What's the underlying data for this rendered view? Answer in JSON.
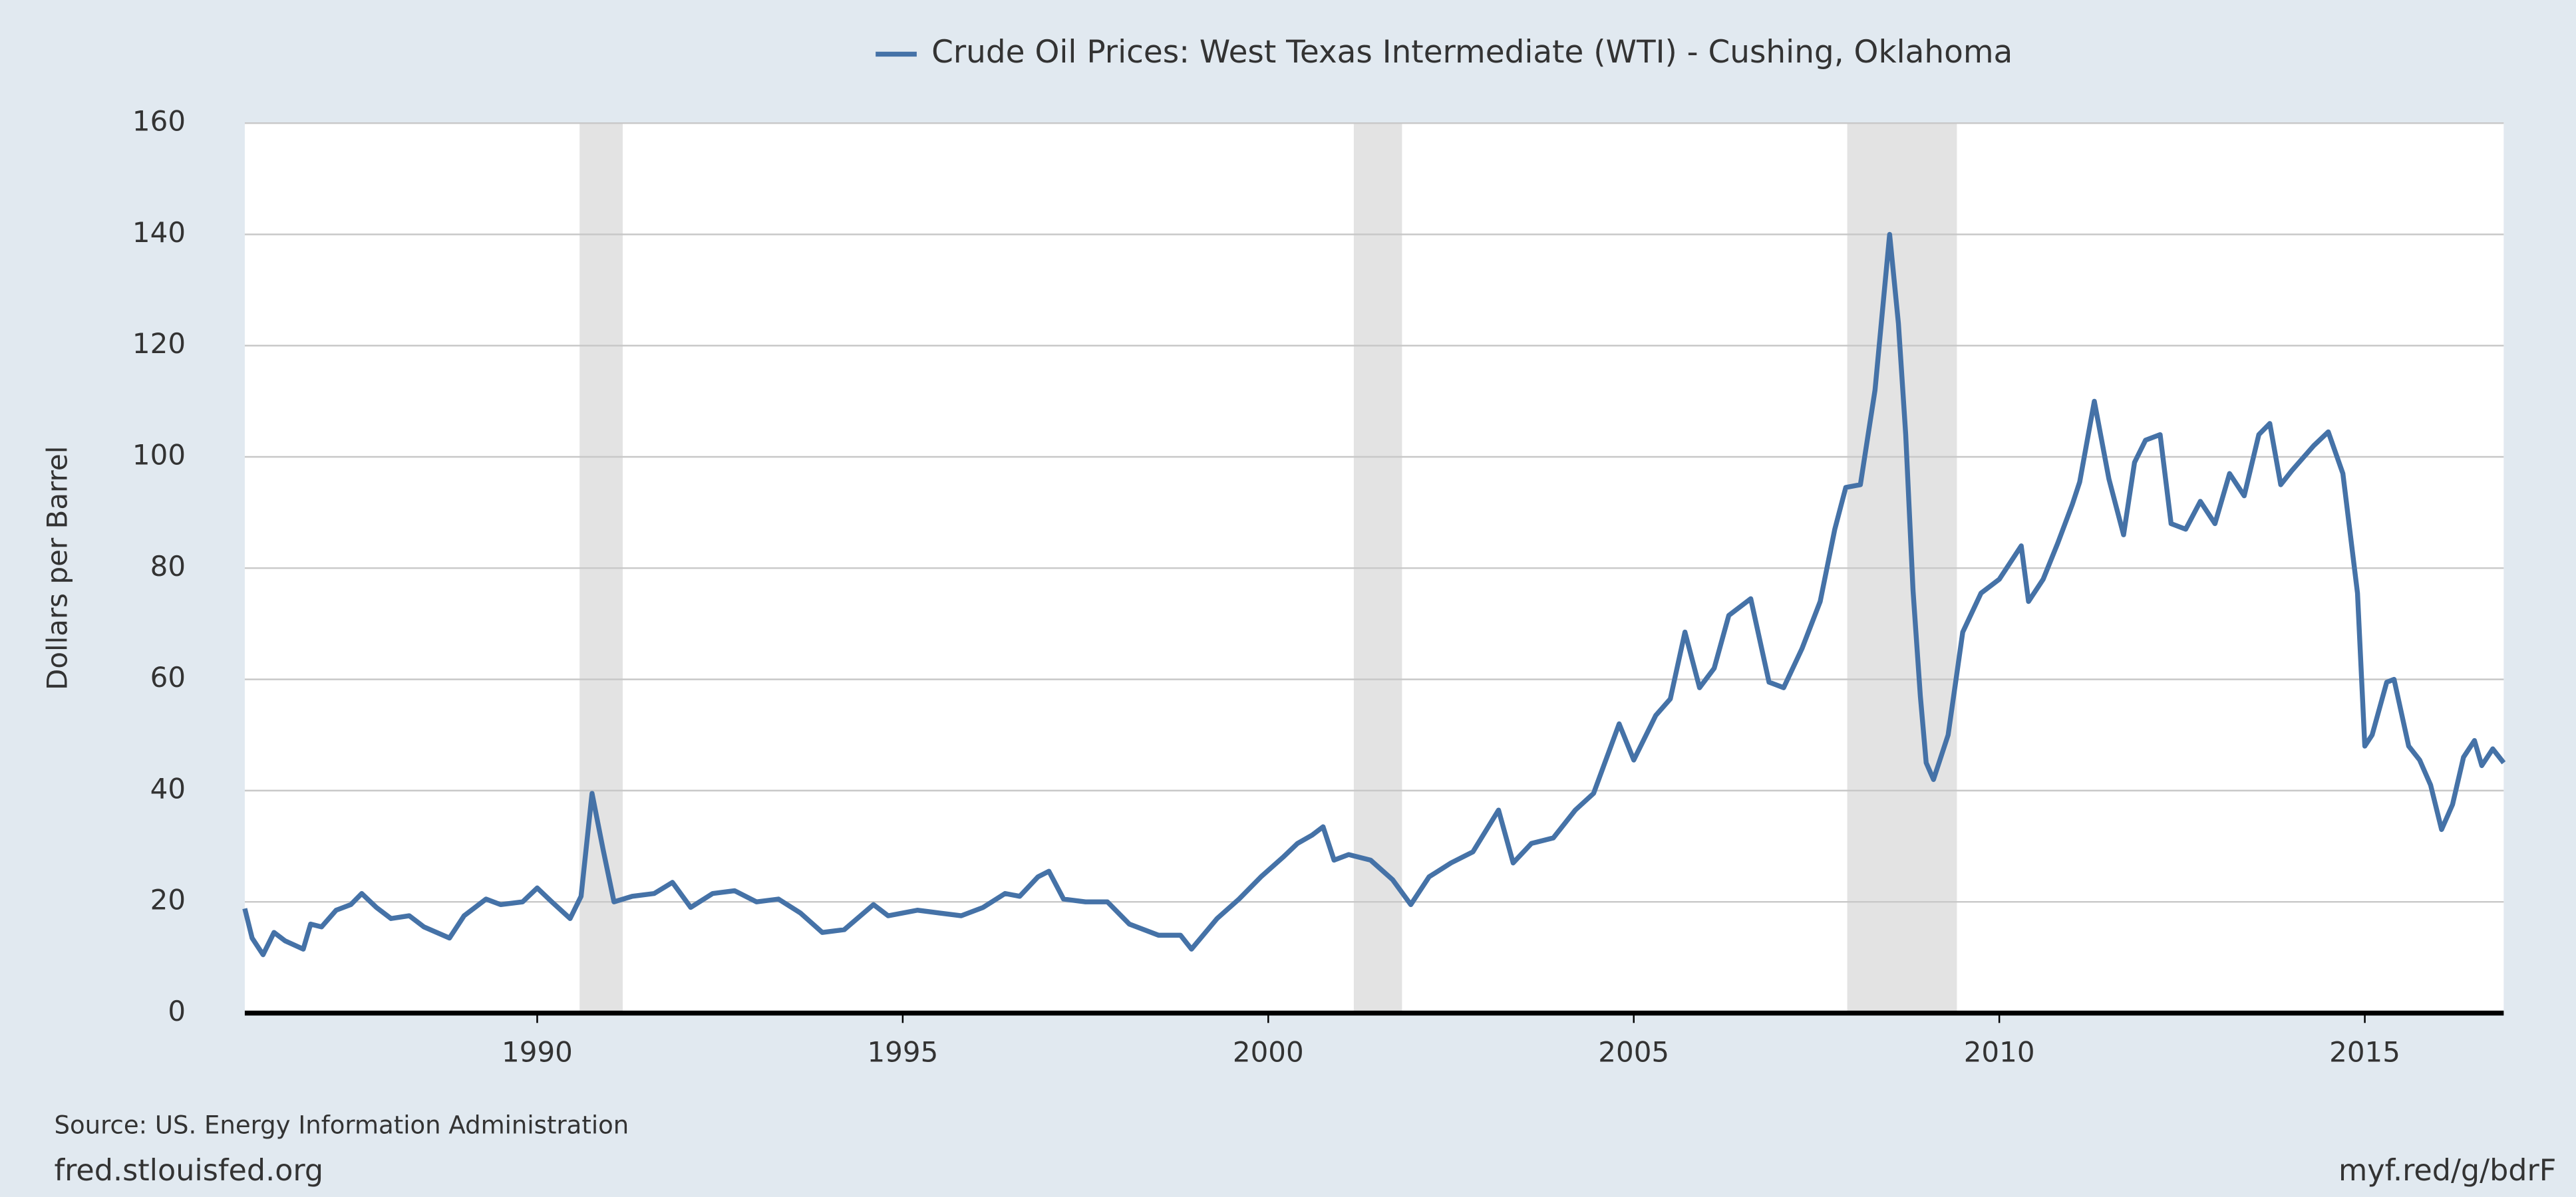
{
  "chart_data": {
    "type": "line",
    "legend": "top",
    "grid": true,
    "y_label": "Dollars per Barrel",
    "source": "Source: US. Energy Information Administration",
    "footer_left": "fred.stlouisfed.org",
    "footer_right": "myf.red/g/bdrF",
    "recessions": [
      [
        1990.58,
        1991.17
      ],
      [
        2001.17,
        2001.83
      ],
      [
        2007.92,
        2009.42
      ]
    ],
    "xlim": [
      1986.0,
      2016.9
    ],
    "xticks": [
      1990,
      1995,
      2000,
      2005,
      2010,
      2015
    ],
    "ylim": [
      0,
      160
    ],
    "yticks": [
      0,
      20,
      40,
      60,
      80,
      100,
      120,
      140,
      160
    ],
    "x": [
      1986.0,
      1986.1,
      1986.25,
      1986.4,
      1986.55,
      1986.8,
      1986.9,
      1987.05,
      1987.25,
      1987.45,
      1987.6,
      1987.8,
      1988.0,
      1988.25,
      1988.45,
      1988.8,
      1989.0,
      1989.3,
      1989.5,
      1989.8,
      1990.0,
      1990.2,
      1990.45,
      1990.6,
      1990.75,
      1990.9,
      1991.05,
      1991.3,
      1991.6,
      1991.85,
      1992.1,
      1992.4,
      1992.7,
      1993.0,
      1993.3,
      1993.6,
      1993.9,
      1994.2,
      1994.6,
      1994.8,
      1995.2,
      1995.5,
      1995.8,
      1996.1,
      1996.4,
      1996.6,
      1996.85,
      1997.0,
      1997.2,
      1997.5,
      1997.8,
      1998.1,
      1998.5,
      1998.8,
      1998.95,
      1999.3,
      1999.6,
      1999.9,
      2000.2,
      2000.4,
      2000.6,
      2000.75,
      2000.9,
      2001.1,
      2001.4,
      2001.7,
      2001.95,
      2002.2,
      2002.5,
      2002.8,
      2003.15,
      2003.35,
      2003.6,
      2003.9,
      2004.2,
      2004.45,
      2004.8,
      2005.0,
      2005.3,
      2005.5,
      2005.7,
      2005.9,
      2006.1,
      2006.3,
      2006.6,
      2006.85,
      2007.05,
      2007.3,
      2007.55,
      2007.75,
      2007.9,
      2008.1,
      2008.3,
      2008.5,
      2008.62,
      2008.72,
      2008.82,
      2008.92,
      2009.0,
      2009.1,
      2009.3,
      2009.5,
      2009.75,
      2010.0,
      2010.3,
      2010.4,
      2010.6,
      2010.8,
      2011.0,
      2011.1,
      2011.3,
      2011.5,
      2011.7,
      2011.85,
      2012.0,
      2012.2,
      2012.35,
      2012.55,
      2012.75,
      2012.95,
      2013.15,
      2013.35,
      2013.55,
      2013.7,
      2013.85,
      2014.0,
      2014.3,
      2014.5,
      2014.7,
      2014.9,
      2015.0,
      2015.1,
      2015.3,
      2015.4,
      2015.6,
      2015.75,
      2015.9,
      2016.05,
      2016.2,
      2016.35,
      2016.5,
      2016.6,
      2016.75,
      2016.9
    ],
    "series": [
      {
        "name": "Crude Oil Prices: West Texas Intermediate (WTI) - Cushing, Oklahoma",
        "color": "#4572a7",
        "values": [
          18.8,
          13.5,
          10.5,
          14.5,
          13,
          11.5,
          16,
          15.5,
          18.5,
          19.5,
          21.5,
          19,
          17,
          17.5,
          15.5,
          13.5,
          17.5,
          20.5,
          19.5,
          20,
          22.5,
          20,
          17,
          21,
          39.5,
          29.5,
          20,
          21,
          21.5,
          23.5,
          19,
          21.5,
          22,
          20,
          20.5,
          18,
          14.5,
          15,
          19.5,
          17.5,
          18.5,
          18,
          17.5,
          19,
          21.5,
          21,
          24.5,
          25.5,
          20.5,
          20,
          20,
          16,
          14,
          14,
          11.5,
          17,
          20.5,
          24.5,
          28,
          30.5,
          32,
          33.5,
          27.5,
          28.5,
          27.5,
          24,
          19.5,
          24.5,
          27,
          29,
          36.5,
          27,
          30.5,
          31.5,
          36.5,
          39.5,
          52,
          45.5,
          53.5,
          56.5,
          68.5,
          58.5,
          62,
          71.5,
          74.5,
          59.5,
          58.5,
          65.5,
          74,
          87,
          94.5,
          95,
          112,
          140,
          124,
          104,
          76,
          57,
          45,
          42,
          50,
          68.5,
          75.5,
          78,
          84,
          74,
          78,
          84.5,
          91.5,
          95.5,
          110,
          96,
          86,
          99,
          103,
          104,
          88,
          87,
          92,
          88,
          97,
          93,
          104,
          106,
          95,
          97.5,
          102,
          104.5,
          97,
          75.5,
          48,
          50,
          59.5,
          60,
          48,
          45.5,
          41,
          33,
          37.5,
          46,
          49,
          44.5,
          47.5,
          45
        ]
      }
    ]
  }
}
